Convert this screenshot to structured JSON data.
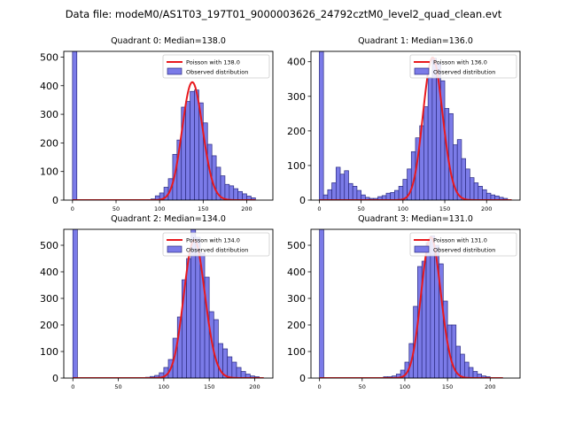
{
  "figure": {
    "suptitle": "Data file: modeM0/AS1T03_197T01_9000003626_24792cztM0_level2_quad_clean.evt"
  },
  "chart_data": [
    {
      "type": "bar",
      "title": "Quadrant 0: Median=138.0",
      "xlim": [
        -10,
        230
      ],
      "ylim": [
        0,
        520
      ],
      "xticks": [
        0,
        50,
        100,
        150,
        200
      ],
      "yticks": [
        0,
        100,
        200,
        300,
        400,
        500
      ],
      "hist": {
        "name": "Observed distribution",
        "bin_width": 5,
        "bins": [
          {
            "x": 0,
            "count": 520
          },
          {
            "x": 90,
            "count": 4
          },
          {
            "x": 95,
            "count": 15
          },
          {
            "x": 100,
            "count": 25
          },
          {
            "x": 105,
            "count": 45
          },
          {
            "x": 110,
            "count": 75
          },
          {
            "x": 115,
            "count": 160
          },
          {
            "x": 120,
            "count": 210
          },
          {
            "x": 125,
            "count": 325
          },
          {
            "x": 130,
            "count": 345
          },
          {
            "x": 135,
            "count": 380
          },
          {
            "x": 140,
            "count": 385
          },
          {
            "x": 145,
            "count": 340
          },
          {
            "x": 150,
            "count": 270
          },
          {
            "x": 155,
            "count": 195
          },
          {
            "x": 160,
            "count": 155
          },
          {
            "x": 165,
            "count": 115
          },
          {
            "x": 170,
            "count": 85
          },
          {
            "x": 175,
            "count": 55
          },
          {
            "x": 180,
            "count": 50
          },
          {
            "x": 185,
            "count": 40
          },
          {
            "x": 190,
            "count": 30
          },
          {
            "x": 195,
            "count": 22
          },
          {
            "x": 200,
            "count": 14
          },
          {
            "x": 205,
            "count": 8
          }
        ]
      },
      "fit": {
        "name": "Poisson with 138.0",
        "lambda": 138.0,
        "peak": 412,
        "range": [
          0,
          210
        ]
      }
    },
    {
      "type": "bar",
      "title": "Quadrant 1: Median=136.0",
      "xlim": [
        -10,
        240
      ],
      "ylim": [
        0,
        430
      ],
      "xticks": [
        0,
        50,
        100,
        150,
        200
      ],
      "yticks": [
        0,
        100,
        200,
        300,
        400
      ],
      "hist": {
        "name": "Observed distribution",
        "bin_width": 5,
        "bins": [
          {
            "x": 0,
            "count": 430
          },
          {
            "x": 5,
            "count": 15
          },
          {
            "x": 10,
            "count": 30
          },
          {
            "x": 15,
            "count": 50
          },
          {
            "x": 20,
            "count": 95
          },
          {
            "x": 25,
            "count": 75
          },
          {
            "x": 30,
            "count": 85
          },
          {
            "x": 35,
            "count": 48
          },
          {
            "x": 40,
            "count": 40
          },
          {
            "x": 45,
            "count": 28
          },
          {
            "x": 50,
            "count": 15
          },
          {
            "x": 55,
            "count": 8
          },
          {
            "x": 60,
            "count": 5
          },
          {
            "x": 65,
            "count": 5
          },
          {
            "x": 70,
            "count": 10
          },
          {
            "x": 75,
            "count": 13
          },
          {
            "x": 80,
            "count": 20
          },
          {
            "x": 85,
            "count": 22
          },
          {
            "x": 90,
            "count": 28
          },
          {
            "x": 95,
            "count": 40
          },
          {
            "x": 100,
            "count": 60
          },
          {
            "x": 105,
            "count": 90
          },
          {
            "x": 110,
            "count": 140
          },
          {
            "x": 115,
            "count": 180
          },
          {
            "x": 120,
            "count": 215
          },
          {
            "x": 125,
            "count": 270
          },
          {
            "x": 130,
            "count": 355
          },
          {
            "x": 135,
            "count": 410
          },
          {
            "x": 140,
            "count": 395
          },
          {
            "x": 145,
            "count": 345
          },
          {
            "x": 150,
            "count": 265
          },
          {
            "x": 155,
            "count": 250
          },
          {
            "x": 160,
            "count": 160
          },
          {
            "x": 165,
            "count": 175
          },
          {
            "x": 170,
            "count": 120
          },
          {
            "x": 175,
            "count": 90
          },
          {
            "x": 180,
            "count": 65
          },
          {
            "x": 185,
            "count": 50
          },
          {
            "x": 190,
            "count": 40
          },
          {
            "x": 195,
            "count": 30
          },
          {
            "x": 200,
            "count": 20
          },
          {
            "x": 205,
            "count": 15
          },
          {
            "x": 210,
            "count": 12
          },
          {
            "x": 215,
            "count": 8
          },
          {
            "x": 220,
            "count": 5
          }
        ]
      },
      "fit": {
        "name": "Poisson with 136.0",
        "lambda": 136.0,
        "peak": 412,
        "range": [
          0,
          230
        ]
      }
    },
    {
      "type": "bar",
      "title": "Quadrant 2: Median=134.0",
      "xlim": [
        -10,
        220
      ],
      "ylim": [
        0,
        560
      ],
      "xticks": [
        0,
        50,
        100,
        150,
        200
      ],
      "yticks": [
        0,
        100,
        200,
        300,
        400,
        500
      ],
      "hist": {
        "name": "Observed distribution",
        "bin_width": 5,
        "bins": [
          {
            "x": 0,
            "count": 560
          },
          {
            "x": 80,
            "count": 3
          },
          {
            "x": 85,
            "count": 6
          },
          {
            "x": 90,
            "count": 10
          },
          {
            "x": 95,
            "count": 20
          },
          {
            "x": 100,
            "count": 40
          },
          {
            "x": 105,
            "count": 70
          },
          {
            "x": 110,
            "count": 150
          },
          {
            "x": 115,
            "count": 230
          },
          {
            "x": 120,
            "count": 370
          },
          {
            "x": 125,
            "count": 450
          },
          {
            "x": 130,
            "count": 560
          },
          {
            "x": 135,
            "count": 530
          },
          {
            "x": 140,
            "count": 470
          },
          {
            "x": 145,
            "count": 380
          },
          {
            "x": 150,
            "count": 250
          },
          {
            "x": 155,
            "count": 220
          },
          {
            "x": 160,
            "count": 130
          },
          {
            "x": 165,
            "count": 110
          },
          {
            "x": 170,
            "count": 80
          },
          {
            "x": 175,
            "count": 60
          },
          {
            "x": 180,
            "count": 40
          },
          {
            "x": 185,
            "count": 25
          },
          {
            "x": 190,
            "count": 15
          },
          {
            "x": 195,
            "count": 8
          },
          {
            "x": 200,
            "count": 5
          }
        ]
      },
      "fit": {
        "name": "Poisson with 134.0",
        "lambda": 134.0,
        "peak": 520,
        "range": [
          0,
          210
        ]
      }
    },
    {
      "type": "bar",
      "title": "Quadrant 3: Median=131.0",
      "xlim": [
        -10,
        235
      ],
      "ylim": [
        0,
        560
      ],
      "xticks": [
        0,
        50,
        100,
        150,
        200
      ],
      "yticks": [
        0,
        100,
        200,
        300,
        400,
        500
      ],
      "hist": {
        "name": "Observed distribution",
        "bin_width": 5,
        "bins": [
          {
            "x": 0,
            "count": 560
          },
          {
            "x": 75,
            "count": 5
          },
          {
            "x": 80,
            "count": 5
          },
          {
            "x": 85,
            "count": 8
          },
          {
            "x": 90,
            "count": 15
          },
          {
            "x": 95,
            "count": 30
          },
          {
            "x": 100,
            "count": 60
          },
          {
            "x": 105,
            "count": 130
          },
          {
            "x": 110,
            "count": 270
          },
          {
            "x": 115,
            "count": 420
          },
          {
            "x": 120,
            "count": 440
          },
          {
            "x": 125,
            "count": 510
          },
          {
            "x": 130,
            "count": 535
          },
          {
            "x": 135,
            "count": 500
          },
          {
            "x": 140,
            "count": 430
          },
          {
            "x": 145,
            "count": 290
          },
          {
            "x": 150,
            "count": 200
          },
          {
            "x": 155,
            "count": 200
          },
          {
            "x": 160,
            "count": 120
          },
          {
            "x": 165,
            "count": 90
          },
          {
            "x": 170,
            "count": 60
          },
          {
            "x": 175,
            "count": 40
          },
          {
            "x": 180,
            "count": 25
          },
          {
            "x": 185,
            "count": 15
          },
          {
            "x": 190,
            "count": 8
          },
          {
            "x": 195,
            "count": 5
          }
        ]
      },
      "fit": {
        "name": "Poisson with 131.0",
        "lambda": 131.0,
        "peak": 530,
        "range": [
          0,
          215
        ]
      }
    }
  ],
  "colors": {
    "bar_fill": "#7b7be8",
    "bar_edge": "#2b2b80",
    "fit_line": "#e8191e",
    "axis": "#000000"
  }
}
